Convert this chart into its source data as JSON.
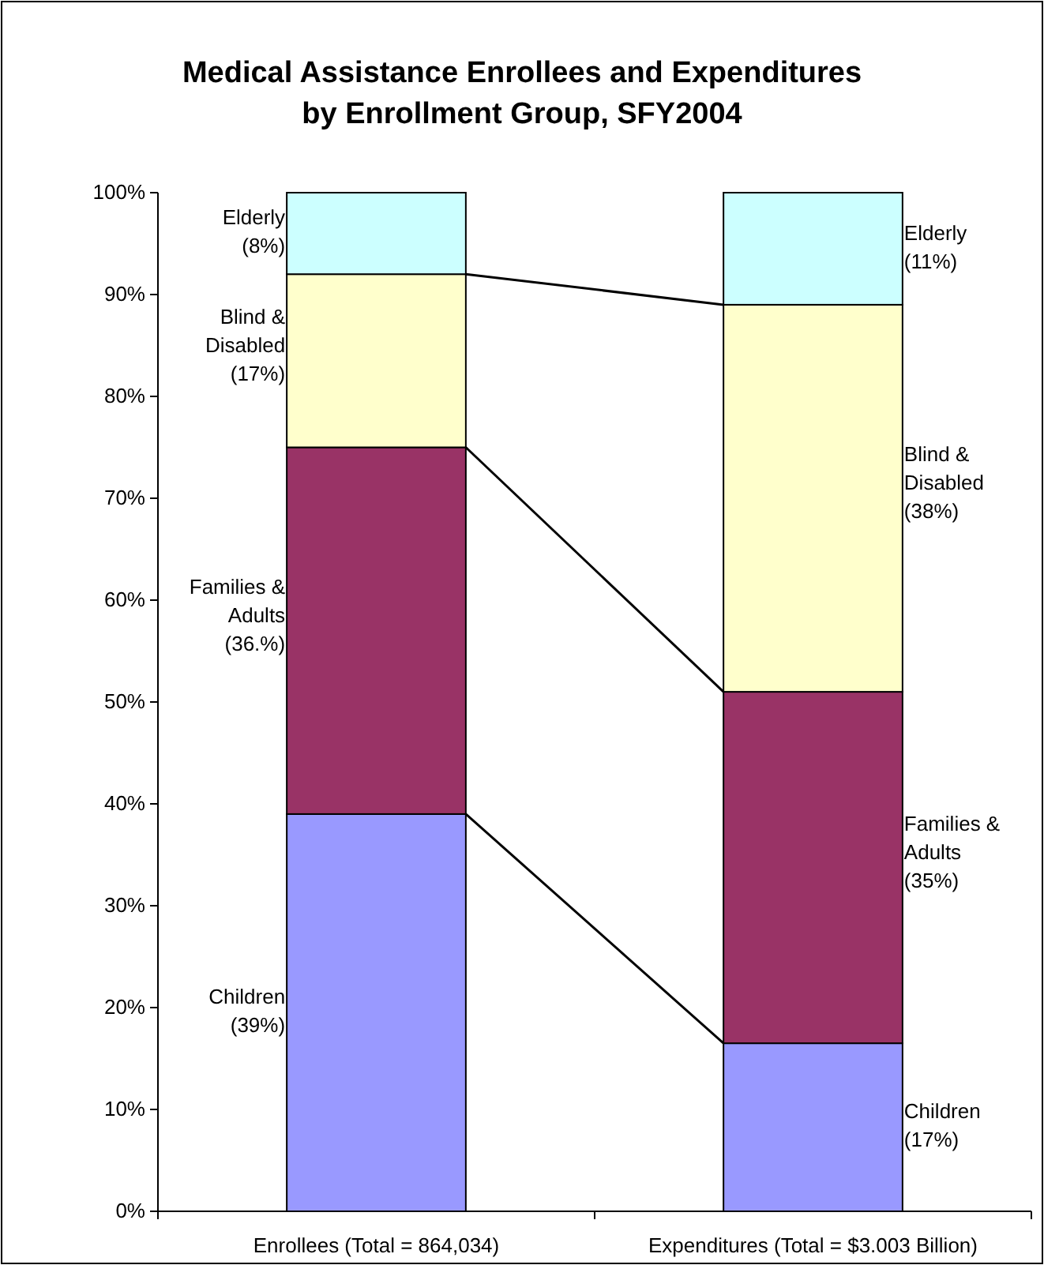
{
  "chart_data": {
    "type": "bar",
    "stacked": true,
    "title": "Medical Assistance Enrollees and Expenditures by Enrollment Group, SFY2004",
    "categories": [
      "Enrollees  (Total = 864,034)",
      "Expenditures  (Total = $3.003 Billion)"
    ],
    "series": [
      {
        "name": "Children",
        "color": "#9999ff",
        "values": [
          39,
          16.5
        ]
      },
      {
        "name": "Families & Adults",
        "color": "#993366",
        "values": [
          36,
          34.5
        ]
      },
      {
        "name": "Blind & Disabled",
        "color": "#ffffcc",
        "values": [
          17,
          38
        ]
      },
      {
        "name": "Elderly",
        "color": "#ccffff",
        "values": [
          8,
          11
        ]
      }
    ],
    "annotations": [
      "(39%)",
      "(36.%)",
      "(17%)",
      "(8%)",
      "(17%)",
      "(35%)",
      "(38%)",
      "(11%)"
    ],
    "ylim": [
      0,
      100
    ],
    "yticks": [
      {
        "value": 0,
        "label": "0%"
      },
      {
        "value": 10,
        "label": "10%"
      },
      {
        "value": 20,
        "label": "20%"
      },
      {
        "value": 30,
        "label": "30%"
      },
      {
        "value": 40,
        "label": "40%"
      },
      {
        "value": 50,
        "label": "50%"
      },
      {
        "value": 60,
        "label": "60%"
      },
      {
        "value": 70,
        "label": "70%"
      },
      {
        "value": 80,
        "label": "80%"
      },
      {
        "value": 90,
        "label": "90%"
      },
      {
        "value": 100,
        "label": "100%"
      }
    ],
    "grid": false,
    "legend": false
  }
}
